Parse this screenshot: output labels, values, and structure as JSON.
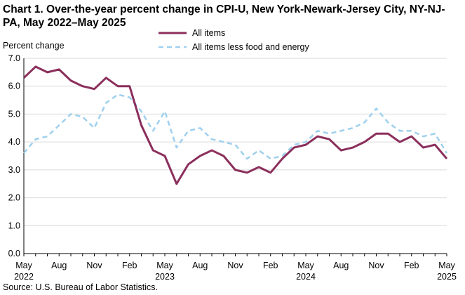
{
  "page": {
    "title": "Chart 1. Over-the-year percent change in CPI-U, New York-Newark-Jersey City, NY-NJ-PA, May 2022–May 2025",
    "source": "Source: U.S. Bureau of Labor Statistics."
  },
  "chart_data": {
    "type": "line",
    "title": "Chart 1. Over-the-year percent change in CPI-U, New York-Newark-Jersey City, NY-NJ-PA, May 2022–May 2025",
    "ylabel": "Percent change",
    "xlabel": "",
    "ylim": [
      0,
      7
    ],
    "yticks": [
      "0.0",
      "1.0",
      "2.0",
      "3.0",
      "4.0",
      "5.0",
      "6.0",
      "7.0"
    ],
    "x": [
      "May 2022",
      "Jun 2022",
      "Jul 2022",
      "Aug 2022",
      "Sep 2022",
      "Oct 2022",
      "Nov 2022",
      "Dec 2022",
      "Jan 2023",
      "Feb 2023",
      "Mar 2023",
      "Apr 2023",
      "May 2023",
      "Jun 2023",
      "Jul 2023",
      "Aug 2023",
      "Sep 2023",
      "Oct 2023",
      "Nov 2023",
      "Dec 2023",
      "Jan 2024",
      "Feb 2024",
      "Mar 2024",
      "Apr 2024",
      "May 2024",
      "Jun 2024",
      "Jul 2024",
      "Aug 2024",
      "Sep 2024",
      "Oct 2024",
      "Nov 2024",
      "Dec 2024",
      "Jan 2025",
      "Feb 2025",
      "Mar 2025",
      "Apr 2025",
      "May 2025"
    ],
    "xtick_labels": [
      {
        "month": "May",
        "year": "2022",
        "index": 0
      },
      {
        "month": "Aug",
        "year": "",
        "index": 3
      },
      {
        "month": "Nov",
        "year": "",
        "index": 6
      },
      {
        "month": "Feb",
        "year": "",
        "index": 9
      },
      {
        "month": "May",
        "year": "2023",
        "index": 12
      },
      {
        "month": "Aug",
        "year": "",
        "index": 15
      },
      {
        "month": "Nov",
        "year": "",
        "index": 18
      },
      {
        "month": "Feb",
        "year": "",
        "index": 21
      },
      {
        "month": "May",
        "year": "2024",
        "index": 24
      },
      {
        "month": "Aug",
        "year": "",
        "index": 27
      },
      {
        "month": "Nov",
        "year": "",
        "index": 30
      },
      {
        "month": "Feb",
        "year": "",
        "index": 33
      },
      {
        "month": "May",
        "year": "2025",
        "index": 36
      }
    ],
    "series": [
      {
        "name": "All items",
        "color": "#8b2f5c",
        "style": "solid",
        "values": [
          6.3,
          6.7,
          6.5,
          6.6,
          6.2,
          6.0,
          5.9,
          6.3,
          6.0,
          6.0,
          4.6,
          3.7,
          3.5,
          2.5,
          3.2,
          3.5,
          3.7,
          3.5,
          3.0,
          2.9,
          3.1,
          2.9,
          3.4,
          3.8,
          3.9,
          4.2,
          4.1,
          3.7,
          3.8,
          4.0,
          4.3,
          4.3,
          4.0,
          4.2,
          3.8,
          3.9,
          3.4
        ]
      },
      {
        "name": "All items less food and energy",
        "color": "#9fd0ee",
        "style": "dashed",
        "values": [
          3.6,
          4.1,
          4.2,
          4.6,
          5.0,
          4.9,
          4.5,
          5.4,
          5.7,
          5.6,
          5.1,
          4.4,
          5.1,
          3.8,
          4.4,
          4.5,
          4.1,
          4.0,
          3.9,
          3.4,
          3.7,
          3.4,
          3.5,
          3.9,
          4.0,
          4.4,
          4.3,
          4.4,
          4.5,
          4.7,
          5.2,
          4.7,
          4.4,
          4.4,
          4.2,
          4.3,
          3.6
        ]
      }
    ],
    "grid": "horizontal",
    "legend_position": "top-center"
  }
}
